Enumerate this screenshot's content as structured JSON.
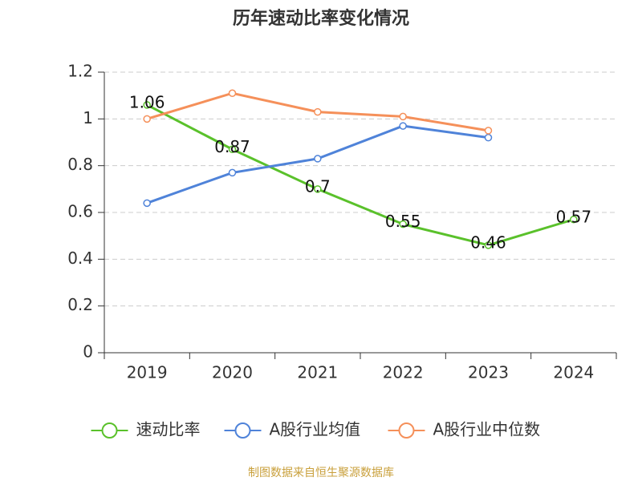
{
  "chart_data": {
    "type": "line",
    "title": "历年速动比率变化情况",
    "categories": [
      "2019",
      "2020",
      "2021",
      "2022",
      "2023",
      "2024"
    ],
    "series": [
      {
        "name": "速动比率",
        "color": "#5ac12b",
        "values": [
          1.06,
          0.87,
          0.7,
          0.55,
          0.46,
          0.57
        ],
        "show_labels": true
      },
      {
        "name": "A股行业均值",
        "color": "#4f83d9",
        "values": [
          0.64,
          0.77,
          0.83,
          0.97,
          0.92,
          null
        ],
        "show_labels": false
      },
      {
        "name": "A股行业中位数",
        "color": "#f5905a",
        "values": [
          1.0,
          1.11,
          1.03,
          1.01,
          0.95,
          null
        ],
        "show_labels": false
      }
    ],
    "ylim": [
      0,
      1.2
    ],
    "yticks": [
      0,
      0.2,
      0.4,
      0.6,
      0.8,
      1,
      1.2
    ],
    "grid": true,
    "legend": "bottom",
    "footer": "制图数据来自恒生聚源数据库"
  }
}
